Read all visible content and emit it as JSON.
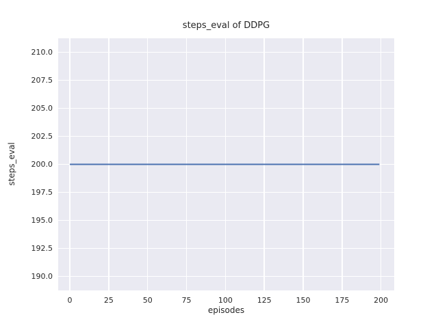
{
  "figure": {
    "background": "#ffffff",
    "plot_background": "#eaeaf2",
    "grid_color": "#ffffff",
    "text_color": "#262626"
  },
  "chart_data": {
    "type": "line",
    "title": "steps_eval of DDPG",
    "xlabel": "episodes",
    "ylabel": "steps_eval",
    "grid": true,
    "legend_position": "none",
    "xlim": [
      -7.5,
      208.5
    ],
    "ylim": [
      188.75,
      211.25
    ],
    "x_ticks": [
      {
        "value": 0,
        "label": "0"
      },
      {
        "value": 25,
        "label": "25"
      },
      {
        "value": 50,
        "label": "50"
      },
      {
        "value": 75,
        "label": "75"
      },
      {
        "value": 100,
        "label": "100"
      },
      {
        "value": 125,
        "label": "125"
      },
      {
        "value": 150,
        "label": "150"
      },
      {
        "value": 175,
        "label": "175"
      },
      {
        "value": 200,
        "label": "200"
      }
    ],
    "y_ticks": [
      {
        "value": 190.0,
        "label": "190.0"
      },
      {
        "value": 192.5,
        "label": "192.5"
      },
      {
        "value": 195.0,
        "label": "195.0"
      },
      {
        "value": 197.5,
        "label": "197.5"
      },
      {
        "value": 200.0,
        "label": "200.0"
      },
      {
        "value": 202.5,
        "label": "202.5"
      },
      {
        "value": 205.0,
        "label": "205.0"
      },
      {
        "value": 207.5,
        "label": "207.5"
      },
      {
        "value": 210.0,
        "label": "210.0"
      }
    ],
    "series": [
      {
        "name": "DDPG steps_eval",
        "color": "#4c72b0",
        "line_width": 2,
        "x": [
          0,
          199
        ],
        "y": [
          200,
          200
        ]
      }
    ]
  }
}
